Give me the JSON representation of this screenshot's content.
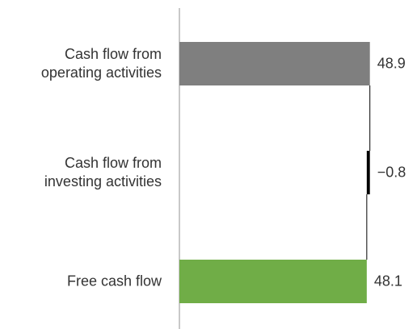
{
  "chart_data": {
    "type": "waterfall",
    "categories": [
      "Cash flow from\noperating activities",
      "Cash flow from\ninvesting activities",
      "Free cash flow"
    ],
    "values": [
      48.9,
      -0.8,
      48.1
    ],
    "value_labels": [
      "48.9",
      "−0.8",
      "48.1"
    ],
    "measure": [
      "absolute",
      "relative",
      "total"
    ],
    "colors": [
      "#7f7f7f",
      "#000000",
      "#70ad47"
    ],
    "xlim": [
      0,
      50
    ]
  }
}
